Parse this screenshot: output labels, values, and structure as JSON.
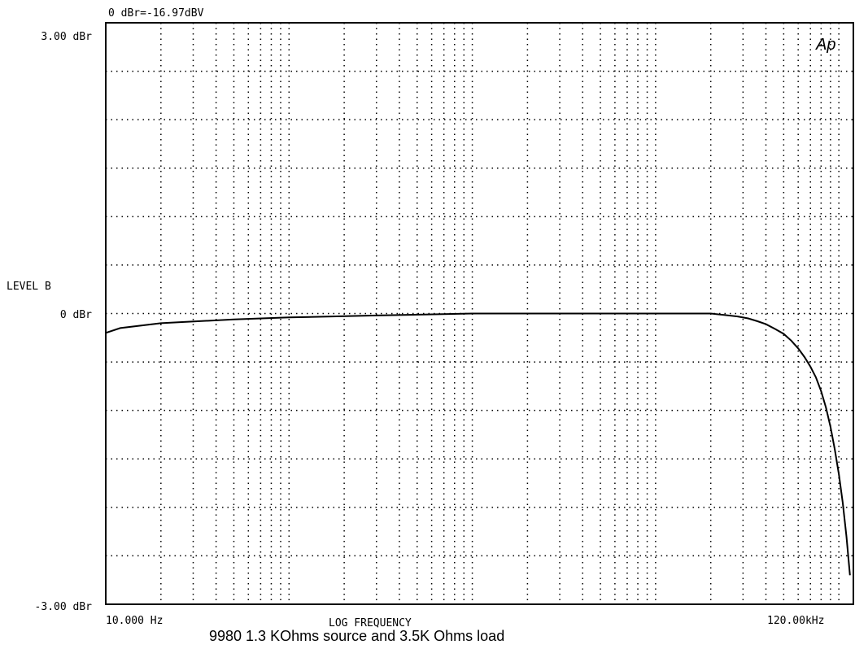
{
  "header": {
    "reference": "0 dBr=-16.97dBV",
    "logo": "Ap"
  },
  "footer": {
    "caption": "9980 1.3 KOhms source and 3.5K Ohms load"
  },
  "chart_data": {
    "type": "line",
    "title": "",
    "xlabel": "LOG FREQUENCY",
    "ylabel": "LEVEL  B",
    "xscale": "log",
    "xlim": [
      10,
      120000
    ],
    "ylim": [
      -3,
      3
    ],
    "x_tick_labels": [
      "10.000 Hz",
      "120.00kHz"
    ],
    "y_tick_labels": [
      "3.00 dBr",
      "0 dBr",
      "-3.00 dBr"
    ],
    "y_tick_values": [
      3,
      0,
      -3
    ],
    "grid": true,
    "series": [
      {
        "x": [
          10,
          12,
          20,
          50,
          100,
          300,
          1000,
          10000,
          20000,
          28000,
          32000,
          36000,
          40000,
          45000,
          50000,
          55000,
          60000,
          65000,
          70000,
          75000,
          80000,
          85000,
          90000,
          95000,
          100000,
          105000,
          110000,
          115000
        ],
        "y": [
          -0.2,
          -0.15,
          -0.1,
          -0.06,
          -0.04,
          -0.02,
          0,
          0,
          0,
          -0.03,
          -0.05,
          -0.08,
          -0.11,
          -0.16,
          -0.21,
          -0.28,
          -0.36,
          -0.45,
          -0.55,
          -0.66,
          -0.8,
          -0.97,
          -1.17,
          -1.4,
          -1.66,
          -1.95,
          -2.3,
          -2.7
        ]
      }
    ]
  }
}
